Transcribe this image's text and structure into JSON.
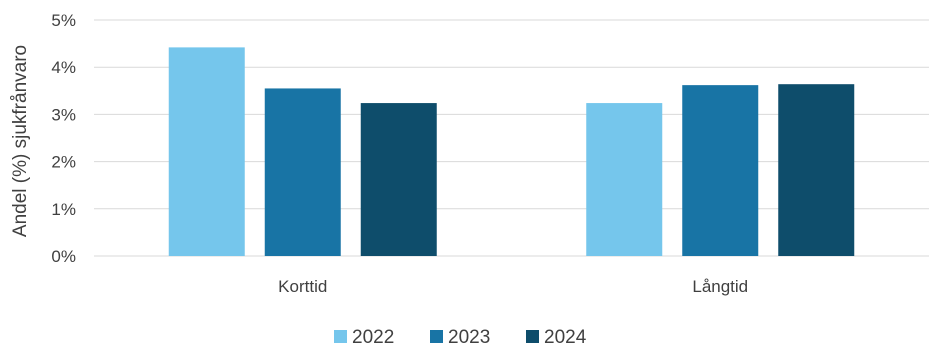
{
  "chart_data": {
    "type": "bar",
    "categories": [
      "Korttid",
      "Långtid"
    ],
    "series": [
      {
        "name": "2022",
        "values": [
          4.42,
          3.24
        ],
        "color": "#75C6EC"
      },
      {
        "name": "2023",
        "values": [
          3.55,
          3.62
        ],
        "color": "#1874A5"
      },
      {
        "name": "2024",
        "values": [
          3.24,
          3.64
        ],
        "color": "#0E4D6B"
      }
    ],
    "ylabel": "Andel (%) sjukfrånvaro",
    "ylim": [
      0,
      5
    ],
    "yticks": [
      0,
      1,
      2,
      3,
      4,
      5
    ],
    "ytick_labels": [
      "0%",
      "1%",
      "2%",
      "3%",
      "4%",
      "5%"
    ],
    "grid": true,
    "legend_position": "bottom"
  }
}
